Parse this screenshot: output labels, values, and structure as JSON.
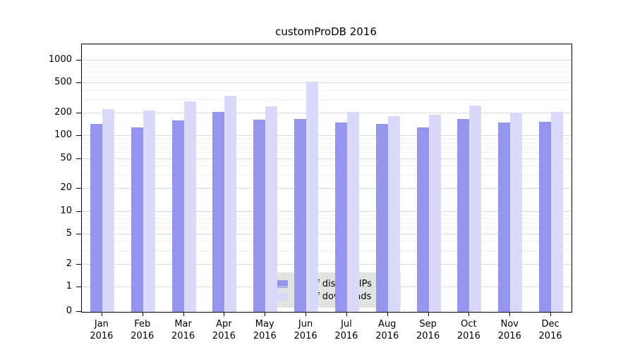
{
  "chart_data": {
    "type": "bar",
    "title": "customProDB 2016",
    "categories": [
      "Jan",
      "Feb",
      "Mar",
      "Apr",
      "May",
      "Jun",
      "Jul",
      "Aug",
      "Sep",
      "Oct",
      "Nov",
      "Dec"
    ],
    "year": "2016",
    "series": [
      {
        "name": "Nb of distinct IPs",
        "color": "#9595ee",
        "values": [
          145,
          130,
          160,
          210,
          165,
          170,
          150,
          145,
          130,
          170,
          150,
          155
        ]
      },
      {
        "name": "Nb of downloads",
        "color": "#d9d9f9",
        "values": [
          230,
          220,
          290,
          340,
          250,
          520,
          210,
          185,
          190,
          255,
          205,
          210
        ]
      }
    ],
    "xlabel": "",
    "ylabel": "",
    "y_ticks": [
      0,
      1,
      2,
      5,
      10,
      20,
      50,
      100,
      200,
      500,
      1000
    ],
    "y_scale": "log",
    "ylim": [
      0,
      1000
    ],
    "grid": true,
    "legend_position": "bottom-center",
    "colors": {
      "grid_major": "#dcdcdc",
      "grid_minor": "#f0f0f0",
      "axis": "#000000",
      "legend_bg": "#e3e3e3"
    }
  }
}
